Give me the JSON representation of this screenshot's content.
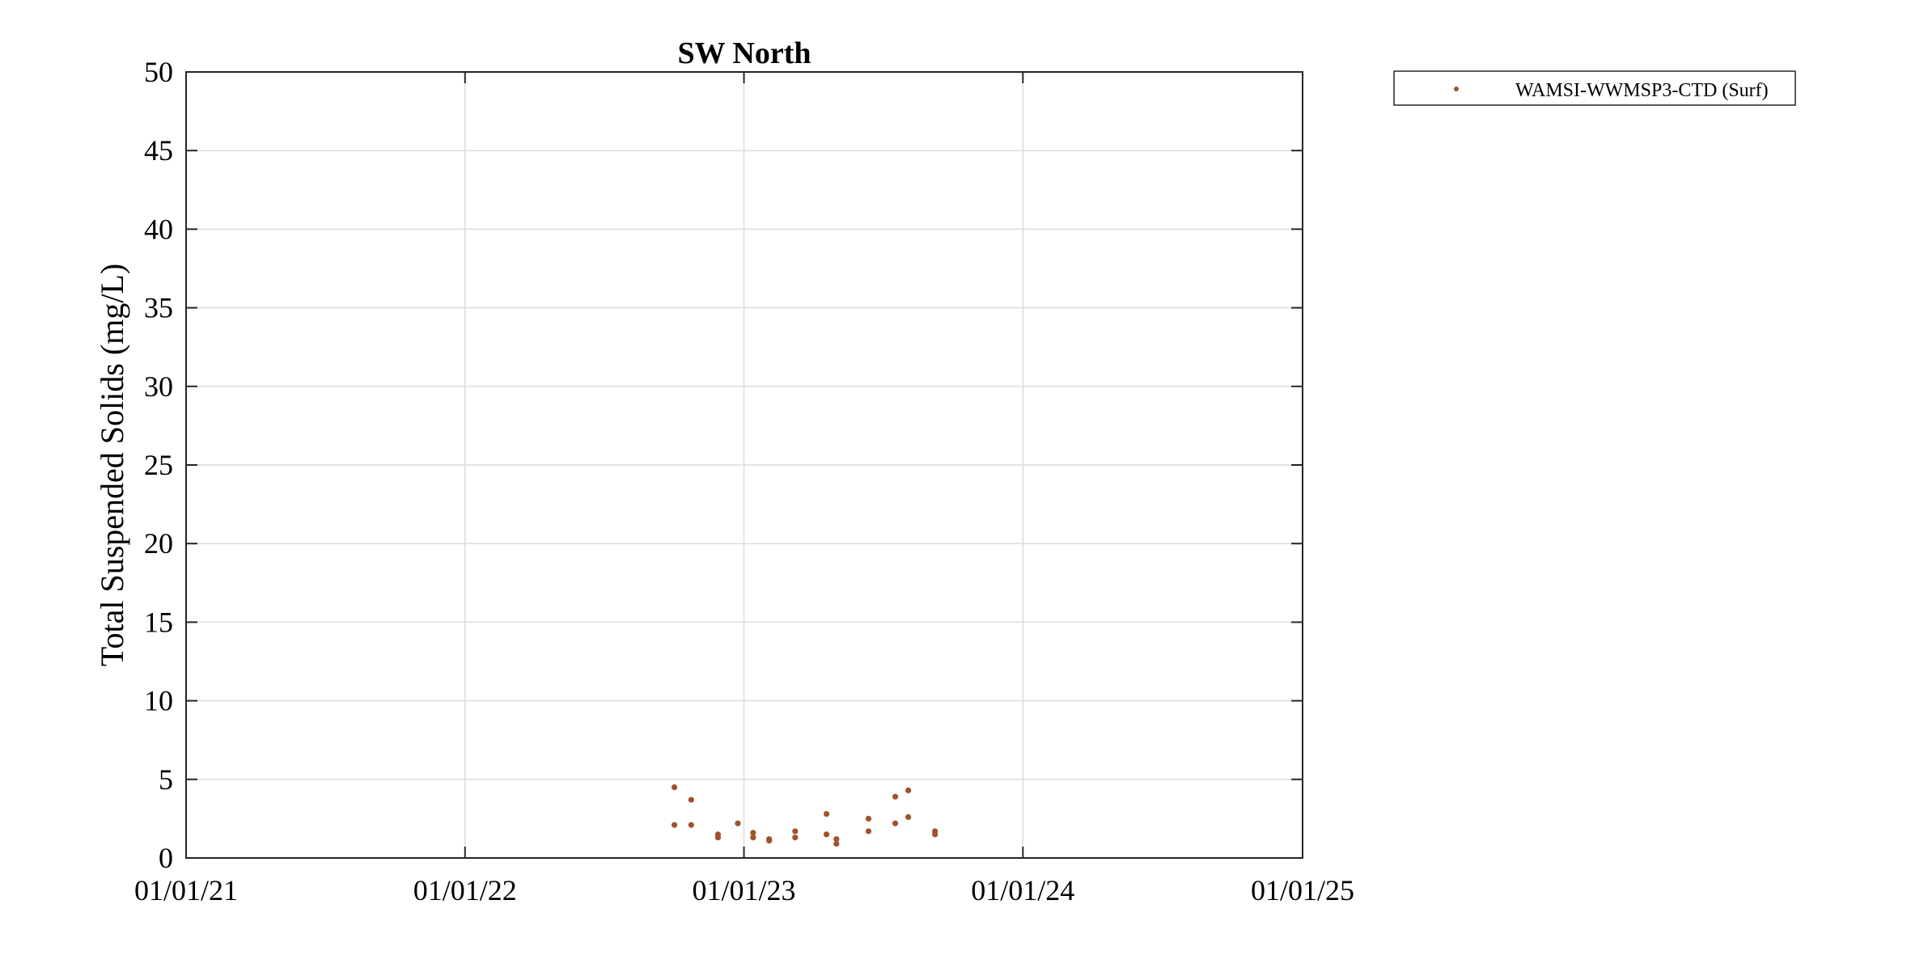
{
  "chart_data": {
    "type": "scatter",
    "title": "SW North",
    "xlabel": "",
    "ylabel": "Total Suspended Solids (mg/L)",
    "xlim": [
      "2021-01-01",
      "2025-01-01"
    ],
    "ylim": [
      0,
      50
    ],
    "x_ticks": [
      "2021-01-01",
      "2022-01-01",
      "2023-01-01",
      "2024-01-01",
      "2025-01-01"
    ],
    "x_tick_labels": [
      "01/01/21",
      "01/01/22",
      "01/01/23",
      "01/01/24",
      "01/01/25"
    ],
    "y_ticks": [
      0,
      5,
      10,
      15,
      20,
      25,
      30,
      35,
      40,
      45,
      50
    ],
    "y_tick_labels": [
      "0",
      "5",
      "10",
      "15",
      "20",
      "25",
      "30",
      "35",
      "40",
      "45",
      "50"
    ],
    "grid": true,
    "legend_position": "outside-top-right",
    "series": [
      {
        "name": "WAMSI-WWMSP3-CTD (Surf)",
        "color": "#a0522d",
        "points": [
          {
            "x": "2022-10-02",
            "y": 4.5
          },
          {
            "x": "2022-10-02",
            "y": 2.1
          },
          {
            "x": "2022-10-24",
            "y": 3.7
          },
          {
            "x": "2022-10-24",
            "y": 2.1
          },
          {
            "x": "2022-11-28",
            "y": 1.5
          },
          {
            "x": "2022-11-28",
            "y": 1.3
          },
          {
            "x": "2022-12-24",
            "y": 2.2
          },
          {
            "x": "2023-01-13",
            "y": 1.6
          },
          {
            "x": "2023-01-13",
            "y": 1.3
          },
          {
            "x": "2023-02-03",
            "y": 1.2
          },
          {
            "x": "2023-02-03",
            "y": 1.1
          },
          {
            "x": "2023-03-09",
            "y": 1.7
          },
          {
            "x": "2023-03-09",
            "y": 1.3
          },
          {
            "x": "2023-04-19",
            "y": 2.8
          },
          {
            "x": "2023-04-19",
            "y": 1.5
          },
          {
            "x": "2023-05-02",
            "y": 1.2
          },
          {
            "x": "2023-05-02",
            "y": 0.9
          },
          {
            "x": "2023-06-13",
            "y": 2.5
          },
          {
            "x": "2023-06-13",
            "y": 1.7
          },
          {
            "x": "2023-07-18",
            "y": 3.9
          },
          {
            "x": "2023-07-18",
            "y": 2.2
          },
          {
            "x": "2023-08-04",
            "y": 4.3
          },
          {
            "x": "2023-08-04",
            "y": 2.6
          },
          {
            "x": "2023-09-08",
            "y": 1.7
          },
          {
            "x": "2023-09-08",
            "y": 1.5
          }
        ]
      }
    ]
  }
}
